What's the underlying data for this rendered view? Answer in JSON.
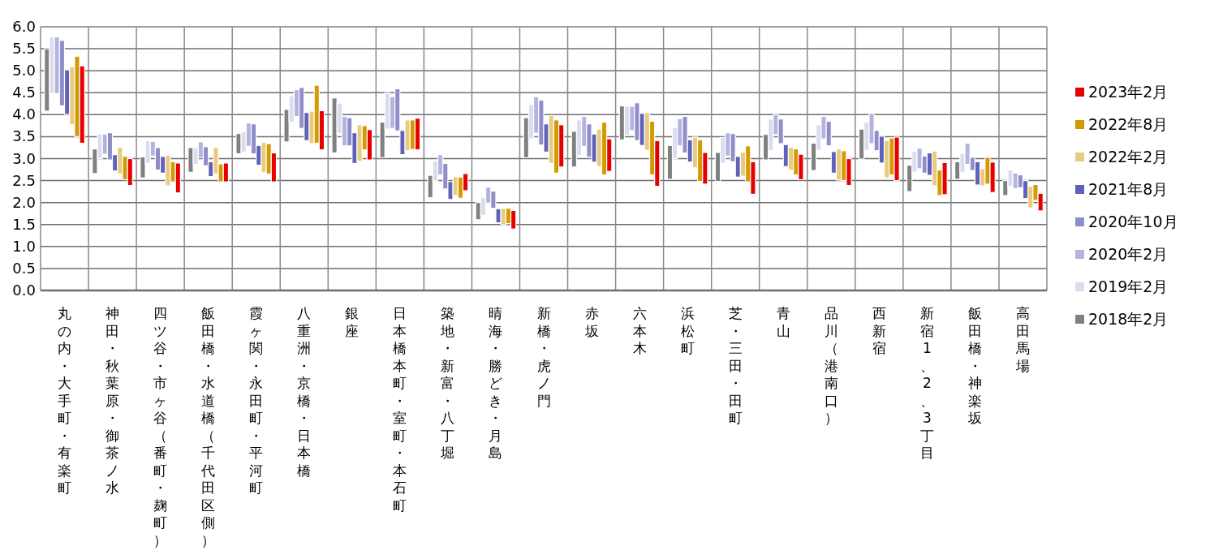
{
  "chart_data": {
    "type": "bar",
    "legend": "right",
    "grid": true,
    "categories": [
      "丸の内・大手町・有楽町",
      "神田・秋葉原・御茶ノ水",
      "四ツ谷・市ヶ谷（番町・麹町）",
      "飯田橋・水道橋（千代田区側）",
      "霞ヶ関・永田町・平河町",
      "八重洲・京橋・日本橋",
      "銀座",
      "日本橋本町・室町・本石町",
      "築地・新富・八丁堀",
      "晴海・勝どき・月島",
      "新橋・虎ノ門",
      "赤坂",
      "六本木",
      "浜松町",
      "芝・三田・田町",
      "青山",
      "品川（港南口）",
      "西新宿",
      "新宿1、2、3丁目",
      "飯田橋・神楽坂",
      "高田馬場"
    ],
    "ylim": [
      0,
      6
    ],
    "yticks": [
      {
        "value": 0,
        "label": "0.0"
      },
      {
        "value": 0.5,
        "label": "0.5"
      },
      {
        "value": 1,
        "label": "1.0"
      },
      {
        "value": 1.5,
        "label": "1.5"
      },
      {
        "value": 2,
        "label": "2.0"
      },
      {
        "value": 2.5,
        "label": "2.5"
      },
      {
        "value": 3,
        "label": "3.0"
      },
      {
        "value": 3.5,
        "label": "3.5"
      },
      {
        "value": 4,
        "label": "4.0"
      },
      {
        "value": 4.5,
        "label": "4.5"
      },
      {
        "value": 5,
        "label": "5.0"
      },
      {
        "value": 5.5,
        "label": "5.5"
      },
      {
        "value": 6,
        "label": "6.0"
      }
    ],
    "series": [
      {
        "name": "2018年2月",
        "color": "#808080",
        "base": [
          4.08,
          2.66,
          2.56,
          2.69,
          3.11,
          3.38,
          3.13,
          3.02,
          2.11,
          1.61,
          3.02,
          2.81,
          3.43,
          2.53,
          2.48,
          2.97,
          2.73,
          2.99,
          2.25,
          2.53,
          2.16
        ],
        "values": [
          1.42,
          0.56,
          0.48,
          0.56,
          0.46,
          0.74,
          1.25,
          0.81,
          0.51,
          0.39,
          0.91,
          0.81,
          0.77,
          0.77,
          0.66,
          0.58,
          0.62,
          0.68,
          0.6,
          0.4,
          0.34
        ]
      },
      {
        "name": "2019年2月",
        "color": "#dcdcef",
        "base": [
          4.48,
          3.0,
          2.89,
          2.87,
          3.15,
          3.83,
          3.57,
          3.67,
          2.49,
          1.71,
          3.45,
          3.07,
          3.53,
          3.0,
          2.89,
          3.18,
          3.19,
          3.19,
          2.69,
          2.69,
          2.37
        ],
        "values": [
          1.29,
          0.56,
          0.52,
          0.38,
          0.46,
          0.6,
          0.69,
          0.82,
          0.46,
          0.4,
          0.78,
          0.81,
          0.66,
          0.71,
          0.59,
          0.72,
          0.58,
          0.64,
          0.47,
          0.43,
          0.37
        ]
      },
      {
        "name": "2020年2月",
        "color": "#b3b3dc",
        "base": [
          4.48,
          3.1,
          3.06,
          3.02,
          3.28,
          3.96,
          3.29,
          3.69,
          2.63,
          1.99,
          3.58,
          3.28,
          3.64,
          3.29,
          3.06,
          3.55,
          3.45,
          3.34,
          2.77,
          2.87,
          2.32
        ],
        "values": [
          1.29,
          0.46,
          0.33,
          0.36,
          0.53,
          0.61,
          0.67,
          0.72,
          0.46,
          0.36,
          0.83,
          0.68,
          0.55,
          0.62,
          0.53,
          0.45,
          0.51,
          0.69,
          0.47,
          0.48,
          0.35
        ]
      },
      {
        "name": "2020年10月",
        "color": "#8e8ecb",
        "base": [
          4.2,
          2.97,
          2.74,
          2.84,
          3.11,
          3.69,
          3.29,
          3.63,
          2.31,
          1.87,
          3.31,
          3.03,
          3.41,
          3.13,
          2.93,
          3.34,
          3.29,
          3.18,
          2.67,
          2.73,
          2.34
        ],
        "values": [
          1.49,
          0.62,
          0.51,
          0.43,
          0.68,
          0.93,
          0.64,
          0.96,
          0.58,
          0.39,
          1.02,
          0.76,
          0.86,
          0.83,
          0.64,
          0.56,
          0.56,
          0.46,
          0.39,
          0.3,
          0.29
        ]
      },
      {
        "name": "2021年8月",
        "color": "#5f62b8",
        "base": [
          4.01,
          2.72,
          2.67,
          2.59,
          2.85,
          3.41,
          2.89,
          3.09,
          2.07,
          1.54,
          3.15,
          2.92,
          3.3,
          2.92,
          2.58,
          2.82,
          2.67,
          2.9,
          2.62,
          2.4,
          2.09
        ],
        "values": [
          1.01,
          0.37,
          0.38,
          0.34,
          0.45,
          0.64,
          0.7,
          0.55,
          0.41,
          0.32,
          0.64,
          0.64,
          0.73,
          0.51,
          0.47,
          0.5,
          0.49,
          0.61,
          0.51,
          0.53,
          0.41
        ]
      },
      {
        "name": "2022年2月",
        "color": "#e9cb7f",
        "base": [
          3.77,
          2.65,
          2.38,
          2.65,
          2.69,
          3.34,
          2.94,
          3.18,
          2.16,
          1.5,
          2.89,
          2.82,
          3.19,
          2.79,
          2.6,
          2.74,
          2.51,
          2.56,
          2.38,
          2.38,
          1.88
        ],
        "values": [
          1.32,
          0.61,
          0.7,
          0.61,
          0.68,
          0.74,
          0.83,
          0.7,
          0.43,
          0.37,
          1.09,
          0.85,
          0.86,
          0.7,
          0.55,
          0.52,
          0.71,
          0.85,
          0.79,
          0.39,
          0.49
        ]
      },
      {
        "name": "2022年8月",
        "color": "#d49a00",
        "base": [
          3.5,
          2.52,
          2.47,
          2.47,
          2.65,
          3.35,
          3.2,
          3.21,
          2.1,
          1.52,
          2.67,
          2.63,
          2.63,
          2.48,
          2.47,
          2.63,
          2.5,
          2.63,
          2.16,
          2.42,
          2.05
        ],
        "values": [
          1.83,
          0.53,
          0.46,
          0.41,
          0.69,
          1.32,
          0.55,
          0.67,
          0.48,
          0.35,
          1.21,
          1.2,
          1.22,
          0.95,
          0.82,
          0.59,
          0.68,
          0.84,
          0.58,
          0.61,
          0.36
        ]
      },
      {
        "name": "2023年2月",
        "color": "#e60000",
        "base": [
          3.35,
          2.39,
          2.22,
          2.47,
          2.47,
          3.2,
          2.97,
          3.2,
          2.27,
          1.4,
          2.81,
          2.71,
          2.37,
          2.42,
          2.19,
          2.52,
          2.39,
          2.5,
          2.18,
          2.23,
          1.81
        ],
        "values": [
          1.76,
          0.61,
          0.68,
          0.43,
          0.66,
          0.89,
          0.69,
          0.72,
          0.39,
          0.42,
          0.96,
          0.74,
          1.04,
          0.72,
          0.74,
          0.58,
          0.61,
          0.99,
          0.73,
          0.69,
          0.4
        ]
      }
    ]
  }
}
